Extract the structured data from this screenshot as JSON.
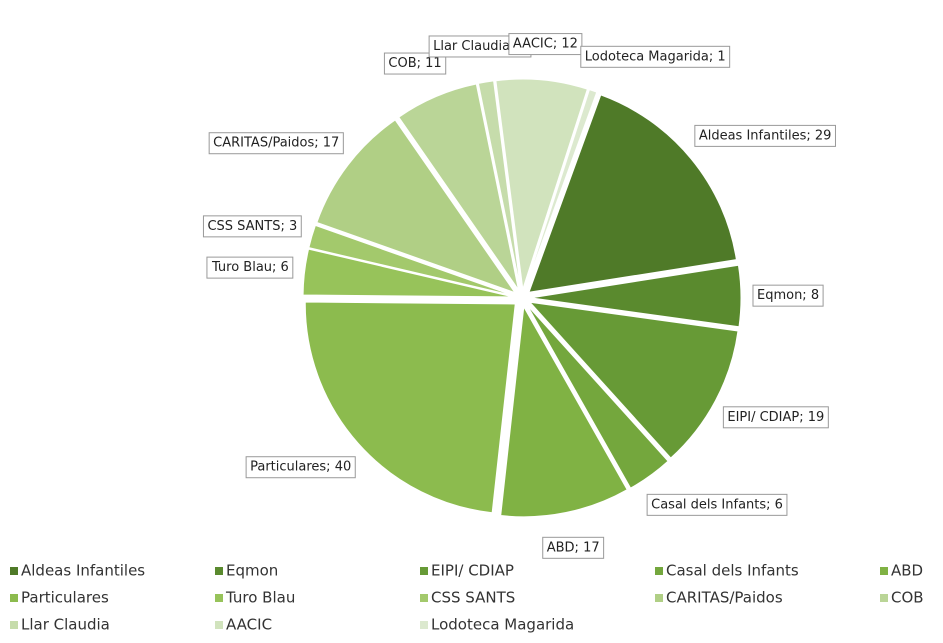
{
  "chart_data": {
    "type": "pie",
    "categories": [
      "Aldeas Infantiles",
      "Eqmon",
      "EIPI/ CDIAP",
      "Casal dels Infants",
      "ABD",
      "Particulares",
      "Turo Blau",
      "CSS SANTS",
      "CARITAS/Paidos",
      "COB",
      "Llar Claudia",
      "AACIC",
      "Lodoteca Magarida"
    ],
    "values": [
      29,
      8,
      19,
      6,
      17,
      40,
      6,
      3,
      17,
      11,
      2,
      12,
      1
    ],
    "value_labels": [
      "Aldeas Infantiles; 29",
      "Eqmon; 8",
      "EIPI/ CDIAP; 19",
      "Casal dels Infants; 6",
      "ABD; 17",
      "Particulares; 40",
      "Turo Blau; 6",
      "CSS SANTS; 3",
      "CARITAS/Paidos; 17",
      "COB; 11",
      "Llar Claudia; 2",
      "AACIC; 12",
      "Lodoteca Magarida; 1"
    ],
    "colors": [
      "#4f7a28",
      "#5a8a2e",
      "#679a36",
      "#74a73d",
      "#80b244",
      "#8cbb4e",
      "#97c35a",
      "#a3c96c",
      "#b0cf85",
      "#bad597",
      "#c6dcab",
      "#d1e3bd",
      "#dce9cf"
    ],
    "legend": "bottom"
  }
}
